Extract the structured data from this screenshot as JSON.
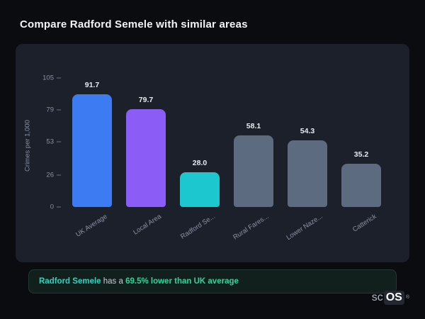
{
  "page_title": "Compare Radford Semele with similar areas",
  "chart_data": {
    "type": "bar",
    "title": "Compare Radford Semele with similar areas",
    "xlabel": "",
    "ylabel": "Crimes per 1,000",
    "categories": [
      "UK Average",
      "Local Area",
      "Radford Se...",
      "Rural Fares...",
      "Lower Naze...",
      "Catterick"
    ],
    "values": [
      91.7,
      79.7,
      28.0,
      58.1,
      54.3,
      35.2
    ],
    "value_labels": [
      "91.7",
      "79.7",
      "28.0",
      "58.1",
      "54.3",
      "35.2"
    ],
    "bar_colors": [
      "#3d7bf2",
      "#8b5cf6",
      "#1cc7d0",
      "#5d6b81",
      "#5d6b81",
      "#5d6b81"
    ],
    "yticks": [
      0,
      26,
      53,
      79,
      105
    ],
    "ylim": [
      0,
      105
    ],
    "grid": false,
    "legend": false
  },
  "note": {
    "area_name": "Radford Semele",
    "connector": " has a ",
    "highlight": "69.5% lower than UK average"
  },
  "logo": {
    "prefix": "sc",
    "suffix": "OS",
    "registered": "®"
  }
}
